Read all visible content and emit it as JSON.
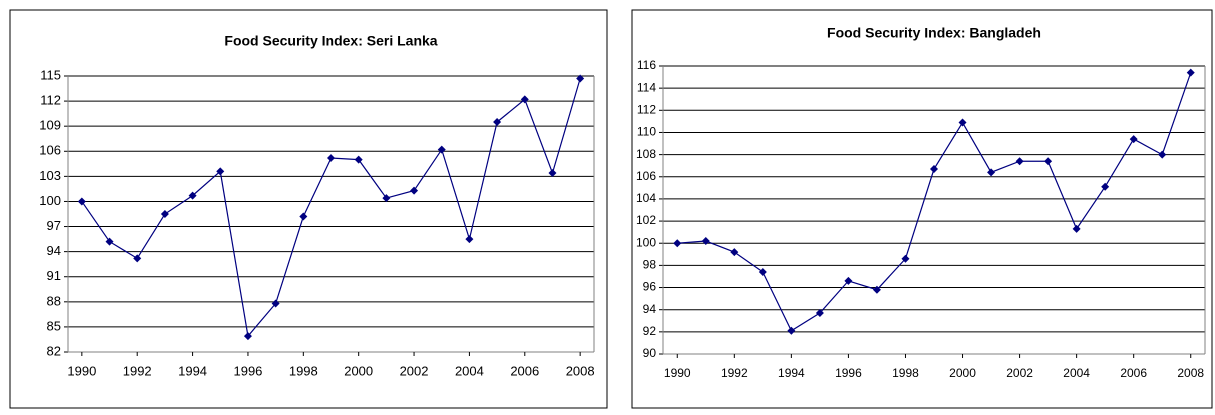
{
  "chart_data": [
    {
      "type": "line",
      "title": "Food Security Index: Seri Lanka",
      "x": [
        1990,
        1991,
        1992,
        1993,
        1994,
        1995,
        1996,
        1997,
        1998,
        1999,
        2000,
        2001,
        2002,
        2003,
        2004,
        2005,
        2006,
        2007,
        2008
      ],
      "series": [
        {
          "name": null,
          "color": "#000080",
          "values": [
            100,
            95.2,
            93.2,
            98.5,
            100.7,
            103.6,
            83.9,
            87.8,
            98.2,
            105.2,
            105,
            100.4,
            101.3,
            106.2,
            95.5,
            109.5,
            112.2,
            103.4,
            114.7
          ]
        }
      ],
      "xlim": [
        1989.5,
        2008.5
      ],
      "xticks": [
        1990,
        1992,
        1994,
        1996,
        1998,
        2000,
        2002,
        2004,
        2006,
        2008
      ],
      "ylim": [
        82,
        115
      ],
      "yticks": [
        82,
        85,
        88,
        91,
        94,
        97,
        100,
        103,
        106,
        109,
        112,
        115
      ],
      "grid": true
    },
    {
      "type": "line",
      "title": "Food Security Index: Bangladeh",
      "x": [
        1990,
        1991,
        1992,
        1993,
        1994,
        1995,
        1996,
        1997,
        1998,
        1999,
        2000,
        2001,
        2002,
        2003,
        2004,
        2005,
        2006,
        2007,
        2008
      ],
      "series": [
        {
          "name": null,
          "color": "#000080",
          "values": [
            100,
            100.2,
            99.2,
            97.4,
            92.1,
            93.7,
            96.6,
            95.8,
            98.6,
            106.7,
            110.9,
            106.4,
            107.4,
            107.4,
            101.3,
            105.1,
            109.4,
            108,
            115.4
          ]
        }
      ],
      "xlim": [
        1989.5,
        2008.5
      ],
      "xticks": [
        1990,
        1992,
        1994,
        1996,
        1998,
        2000,
        2002,
        2004,
        2006,
        2008
      ],
      "ylim": [
        90,
        116
      ],
      "yticks": [
        90,
        92,
        94,
        96,
        98,
        100,
        102,
        104,
        106,
        108,
        110,
        112,
        114,
        116
      ],
      "grid": true
    }
  ]
}
